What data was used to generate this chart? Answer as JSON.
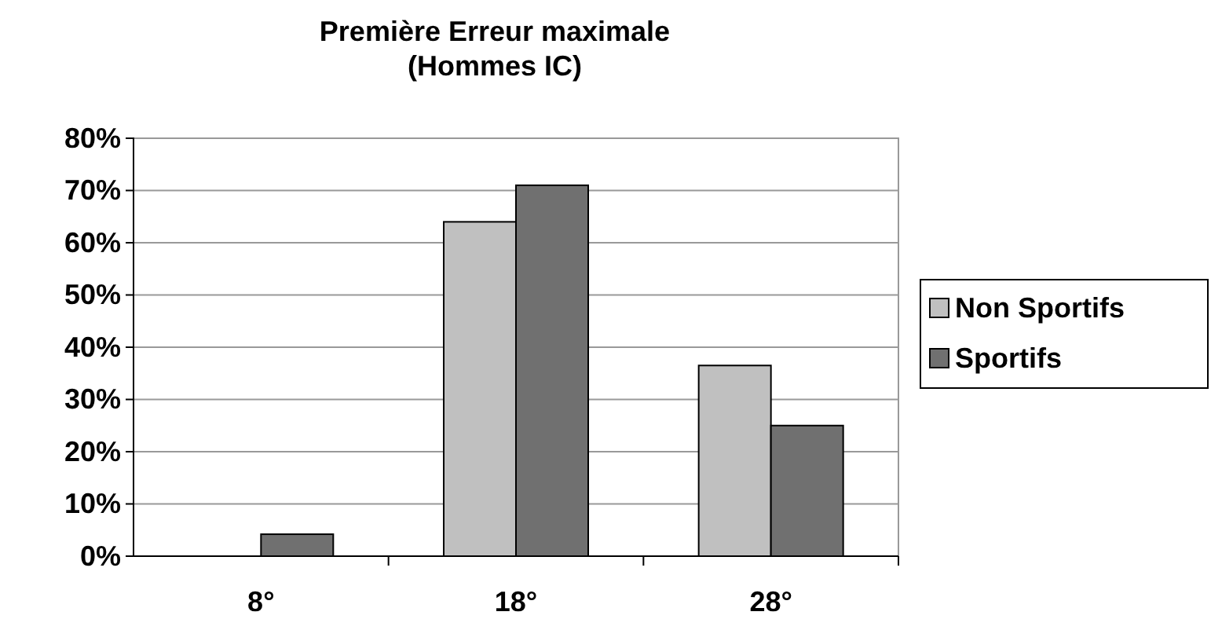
{
  "chart_data": {
    "type": "bar",
    "title": "Première Erreur maximale\n(Hommes IC)",
    "categories": [
      "8°",
      "18°",
      "28°"
    ],
    "series": [
      {
        "name": "Non Sportifs",
        "color": "#c0c0c0",
        "values": [
          0,
          0.64,
          0.365
        ]
      },
      {
        "name": "Sportifs",
        "color": "#707070",
        "values": [
          0.042,
          0.71,
          0.25
        ]
      }
    ],
    "ylim": [
      0,
      0.8
    ],
    "yticks": [
      {
        "value": 0,
        "label": "0%"
      },
      {
        "value": 0.1,
        "label": "10%"
      },
      {
        "value": 0.2,
        "label": "20%"
      },
      {
        "value": 0.3,
        "label": "30%"
      },
      {
        "value": 0.4,
        "label": "40%"
      },
      {
        "value": 0.5,
        "label": "50%"
      },
      {
        "value": 0.6,
        "label": "60%"
      },
      {
        "value": 0.7,
        "label": "70%"
      },
      {
        "value": 0.8,
        "label": "80%"
      }
    ],
    "grid": "y",
    "legend": "right"
  }
}
